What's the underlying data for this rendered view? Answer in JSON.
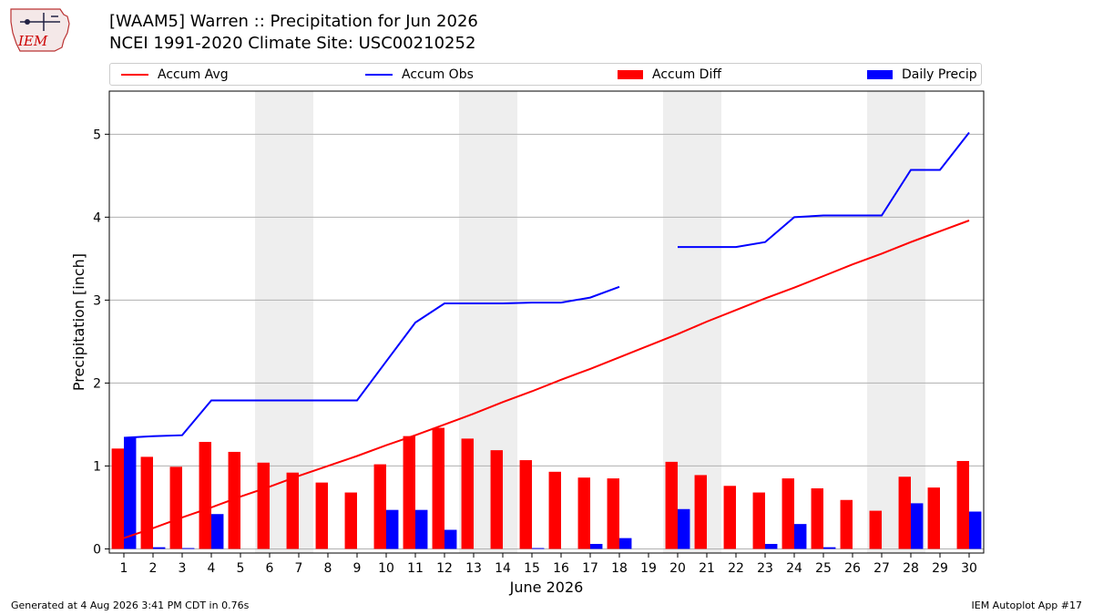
{
  "header": {
    "title_line1": "[WAAM5] Warren :: Precipitation for Jun 2026",
    "title_line2": "NCEI 1991-2020 Climate Site: USC00210252"
  },
  "logo": {
    "text": "IEM"
  },
  "legend": [
    {
      "label": "Accum Avg",
      "kind": "line",
      "color": "#ff0000"
    },
    {
      "label": "Accum Obs",
      "kind": "line",
      "color": "#0000ff"
    },
    {
      "label": "Accum Diff",
      "kind": "box",
      "color": "#ff0000"
    },
    {
      "label": "Daily Precip",
      "kind": "box",
      "color": "#0000ff"
    }
  ],
  "footer": {
    "generated": "Generated at 4 Aug 2026 3:41 PM CDT in 0.76s",
    "app": "IEM Autoplot App #17"
  },
  "chart_data": {
    "type": "bar",
    "xlabel": "June 2026",
    "ylabel": "Precipitation [inch]",
    "ylim": [
      -0.05,
      5.52
    ],
    "yticks": [
      0,
      1,
      2,
      3,
      4,
      5
    ],
    "grid": true,
    "legend_position": "top",
    "weekend_shading": [
      [
        6,
        7
      ],
      [
        13,
        14
      ],
      [
        20,
        21
      ],
      [
        27,
        28
      ]
    ],
    "categories": [
      "1",
      "2",
      "3",
      "4",
      "5",
      "6",
      "7",
      "8",
      "9",
      "10",
      "11",
      "12",
      "13",
      "14",
      "15",
      "16",
      "17",
      "18",
      "19",
      "20",
      "21",
      "22",
      "23",
      "24",
      "25",
      "26",
      "27",
      "28",
      "29",
      "30"
    ],
    "series": [
      {
        "name": "Accum Avg",
        "type": "line",
        "color": "#ff0000",
        "values": [
          0.13,
          0.25,
          0.38,
          0.5,
          0.63,
          0.75,
          0.88,
          1.0,
          1.12,
          1.25,
          1.37,
          1.5,
          1.63,
          1.77,
          1.9,
          2.04,
          2.17,
          2.31,
          2.45,
          2.59,
          2.74,
          2.88,
          3.02,
          3.15,
          3.29,
          3.43,
          3.56,
          3.7,
          3.83,
          3.96
        ]
      },
      {
        "name": "Accum Obs",
        "type": "line",
        "color": "#0000ff",
        "values": [
          1.34,
          1.36,
          1.37,
          1.79,
          1.79,
          1.79,
          1.79,
          1.79,
          1.79,
          2.26,
          2.73,
          2.96,
          2.96,
          2.96,
          2.97,
          2.97,
          3.03,
          3.16,
          null,
          3.64,
          3.64,
          3.64,
          3.7,
          4.0,
          4.02,
          4.02,
          4.02,
          4.57,
          4.57,
          5.02
        ]
      },
      {
        "name": "Accum Diff",
        "type": "bar",
        "color": "#ff0000",
        "values": [
          1.21,
          1.11,
          0.99,
          1.29,
          1.17,
          1.04,
          0.92,
          0.8,
          0.68,
          1.02,
          1.36,
          1.46,
          1.33,
          1.19,
          1.07,
          0.93,
          0.86,
          0.85,
          null,
          1.05,
          0.89,
          0.76,
          0.68,
          0.85,
          0.73,
          0.59,
          0.46,
          0.87,
          0.74,
          1.06
        ]
      },
      {
        "name": "Daily Precip",
        "type": "bar",
        "color": "#0000ff",
        "values": [
          1.34,
          0.02,
          0.01,
          0.42,
          0.0,
          0.0,
          0.0,
          0.0,
          0.0,
          0.47,
          0.47,
          0.23,
          0.0,
          0.0,
          0.01,
          0.0,
          0.06,
          0.13,
          null,
          0.48,
          0.0,
          0.0,
          0.06,
          0.3,
          0.02,
          0.0,
          0.0,
          0.55,
          0.0,
          0.45
        ]
      }
    ]
  }
}
